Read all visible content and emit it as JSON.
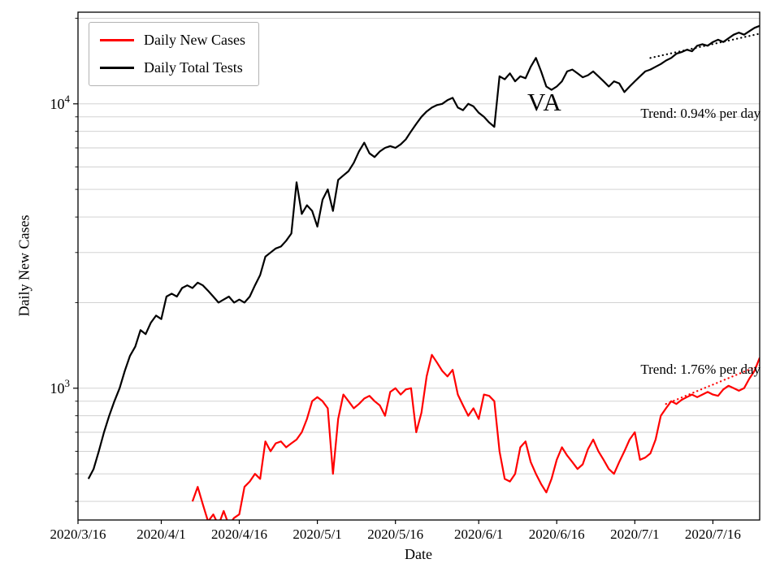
{
  "figure": {
    "annotation": "VA",
    "trend_label_tests": "Trend: 0.94% per day",
    "trend_label_cases": "Trend: 1.76% per day",
    "xlabel": "Date",
    "ylabel": "Daily New Cases",
    "background": "#ffffff",
    "grid_color": "#cccccc",
    "axis_color": "#000000"
  },
  "legend": {
    "items": [
      {
        "label": "Daily New Cases",
        "color": "#ff0000"
      },
      {
        "label": "Daily Total Tests",
        "color": "#000000"
      }
    ]
  },
  "chart_data": {
    "type": "line",
    "title": "VA",
    "xlabel": "Date",
    "ylabel": "Daily New Cases",
    "yscale": "log",
    "ylim": [
      344,
      21000
    ],
    "grid": true,
    "legend_position": "upper-left",
    "x_start_date": "2020/3/16",
    "x_total_days": 131,
    "xticks": [
      {
        "day": 0,
        "label": "2020/3/16"
      },
      {
        "day": 16,
        "label": "2020/4/1"
      },
      {
        "day": 31,
        "label": "2020/4/16"
      },
      {
        "day": 46,
        "label": "2020/5/1"
      },
      {
        "day": 61,
        "label": "2020/5/16"
      },
      {
        "day": 77,
        "label": "2020/6/1"
      },
      {
        "day": 92,
        "label": "2020/6/16"
      },
      {
        "day": 107,
        "label": "2020/7/1"
      },
      {
        "day": 122,
        "label": "2020/7/16"
      }
    ],
    "ytick_major": [
      {
        "value": 1000,
        "base": "10",
        "exp": "3"
      },
      {
        "value": 10000,
        "base": "10",
        "exp": "4"
      }
    ],
    "grid_values": [
      400,
      500,
      600,
      700,
      800,
      900,
      1000,
      2000,
      3000,
      4000,
      5000,
      6000,
      7000,
      8000,
      9000,
      10000,
      20000
    ],
    "series": [
      {
        "name": "Daily Total Tests",
        "color": "#000000",
        "start_day": 2,
        "values": [
          480,
          520,
          600,
          700,
          800,
          900,
          1000,
          1150,
          1300,
          1400,
          1600,
          1550,
          1700,
          1800,
          1750,
          2100,
          2150,
          2100,
          2250,
          2300,
          2250,
          2350,
          2300,
          2200,
          2100,
          2000,
          2050,
          2100,
          2000,
          2050,
          2000,
          2100,
          2300,
          2500,
          2900,
          3000,
          3100,
          3150,
          3300,
          3500,
          5300,
          4100,
          4400,
          4200,
          3700,
          4600,
          5000,
          4200,
          5400,
          5600,
          5800,
          6200,
          6800,
          7300,
          6700,
          6500,
          6800,
          7000,
          7100,
          7000,
          7200,
          7500,
          8000,
          8500,
          9000,
          9400,
          9700,
          9900,
          10000,
          10300,
          10500,
          9700,
          9500,
          10000,
          9800,
          9300,
          9000,
          8600,
          8300,
          12500,
          12200,
          12800,
          12000,
          12500,
          12300,
          13500,
          14500,
          13000,
          11500,
          11200,
          11500,
          12000,
          13000,
          13200,
          12800,
          12400,
          12600,
          13000,
          12500,
          12000,
          11500,
          12000,
          11800,
          11000,
          11500,
          12000,
          12500,
          13000,
          13200,
          13500,
          13800,
          14200,
          14500,
          15000,
          15200,
          15500,
          15300,
          16000,
          16200,
          16000,
          16500,
          16800,
          16500,
          17000,
          17500,
          17800,
          17500,
          18000,
          18500,
          18800
        ]
      },
      {
        "name": "Daily New Cases",
        "color": "#ff0000",
        "start_day": 22,
        "values": [
          400,
          450,
          390,
          340,
          360,
          330,
          370,
          330,
          350,
          360,
          450,
          470,
          500,
          480,
          650,
          600,
          640,
          650,
          620,
          640,
          660,
          700,
          780,
          900,
          930,
          900,
          850,
          500,
          780,
          950,
          900,
          850,
          880,
          920,
          940,
          900,
          870,
          800,
          970,
          1000,
          950,
          990,
          1000,
          700,
          820,
          1100,
          1310,
          1230,
          1150,
          1100,
          1160,
          950,
          870,
          800,
          850,
          780,
          950,
          940,
          900,
          600,
          480,
          470,
          500,
          620,
          650,
          550,
          500,
          460,
          430,
          480,
          560,
          620,
          580,
          550,
          520,
          540,
          610,
          660,
          600,
          560,
          520,
          500,
          550,
          600,
          660,
          700,
          560,
          570,
          590,
          660,
          800,
          850,
          900,
          880,
          910,
          930,
          950,
          930,
          950,
          970,
          950,
          940,
          990,
          1020,
          1000,
          980,
          1000,
          1080,
          1150,
          1280
        ]
      }
    ],
    "trend_lines": [
      {
        "name": "tests-trend",
        "color": "#000000",
        "start_day": 110,
        "end_day": 131,
        "start_value": 14500,
        "rate_pct_per_day": 0.94,
        "label": "Trend: 0.94% per day"
      },
      {
        "name": "cases-trend",
        "color": "#ff0000",
        "start_day": 113,
        "end_day": 131,
        "start_value": 880,
        "rate_pct_per_day": 1.76,
        "label": "Trend: 1.76% per day"
      }
    ]
  }
}
